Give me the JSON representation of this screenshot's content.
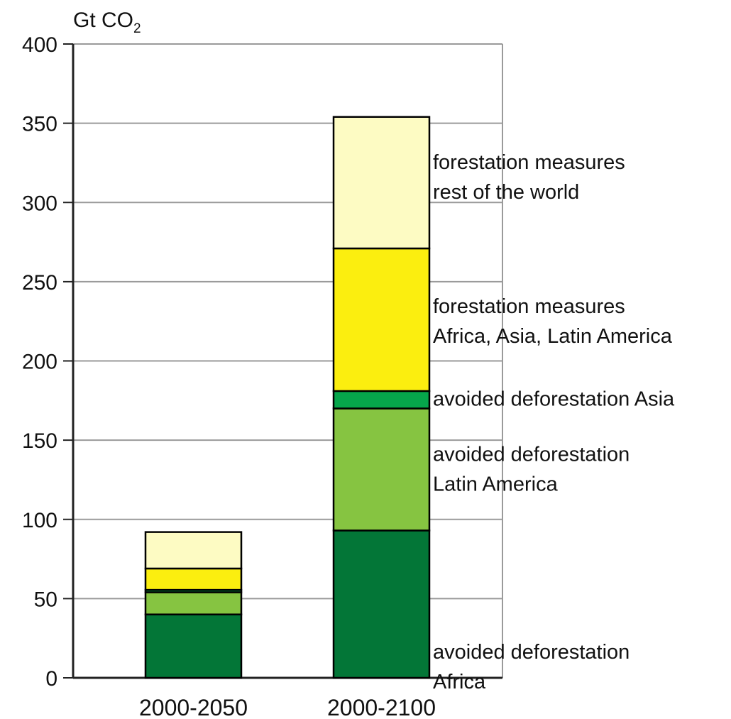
{
  "chart_data": {
    "type": "bar",
    "stacked": true,
    "title": "",
    "xlabel": "",
    "ylabel": "",
    "unit_label": {
      "prefix": "Gt CO",
      "subscript": "2"
    },
    "ylim": [
      0,
      400
    ],
    "ytick_step": 50,
    "yticks": [
      0,
      50,
      100,
      150,
      200,
      250,
      300,
      350,
      400
    ],
    "grid": "horizontal",
    "legend": "inline labels to the right of the 2000-2100 bar",
    "categories": [
      "2000-2050",
      "2000-2100"
    ],
    "series": [
      {
        "key": "af",
        "color": "#037637",
        "labels": [
          "avoided deforestation",
          "Africa"
        ],
        "values": [
          40,
          93
        ]
      },
      {
        "key": "la",
        "color": "#86c441",
        "labels": [
          "avoided deforestation",
          "Latin America"
        ],
        "values": [
          14,
          77
        ]
      },
      {
        "key": "as",
        "color": "#06a64b",
        "labels": [
          "avoided deforestation Asia"
        ],
        "values": [
          1.5,
          11
        ]
      },
      {
        "key": "fa",
        "color": "#fbee0f",
        "labels": [
          "forestation measures",
          "Africa, Asia, Latin America"
        ],
        "values": [
          13.5,
          90
        ]
      },
      {
        "key": "fr",
        "color": "#fdfbc3",
        "labels": [
          "forestation measures",
          "rest of the world"
        ],
        "values": [
          23,
          83
        ]
      }
    ]
  }
}
